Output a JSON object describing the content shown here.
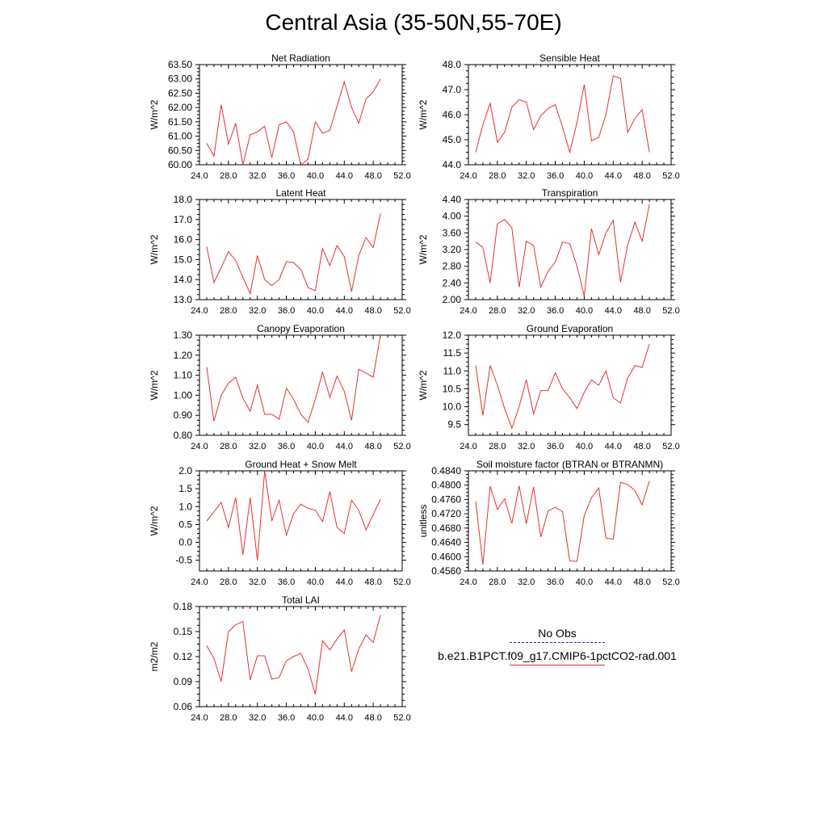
{
  "page_title": "Central Asia (35-50N,55-70E)",
  "legend": {
    "entries": [
      {
        "label": "No Obs",
        "color": "#2b2bcf",
        "style": "dashed"
      },
      {
        "label": "b.e21.B1PCT.f09_g17.CMIP6-1pctCO2-rad.001",
        "color": "#e53030",
        "style": "solid"
      }
    ]
  },
  "chart_data": [
    {
      "type": "line",
      "title": "Net Radiation",
      "ylabel": "W/m^2",
      "xlim": [
        24,
        52
      ],
      "ylim": [
        60.0,
        63.5
      ],
      "xticks": [
        "24.0",
        "28.0",
        "32.0",
        "36.0",
        "40.0",
        "44.0",
        "48.0",
        "52.0"
      ],
      "yticks": [
        "60.00",
        "60.50",
        "61.00",
        "61.50",
        "62.00",
        "62.50",
        "63.00",
        "63.50"
      ],
      "series": [
        {
          "color": "#e53030",
          "x": [
            25,
            26,
            27,
            28,
            29,
            30,
            31,
            32,
            33,
            34,
            35,
            36,
            37,
            38,
            39,
            40,
            41,
            42,
            43,
            44,
            45,
            46,
            47,
            48,
            49
          ],
          "values": [
            60.75,
            60.3,
            62.1,
            60.72,
            61.45,
            60.0,
            61.05,
            61.15,
            61.35,
            60.25,
            61.4,
            61.5,
            61.15,
            59.98,
            60.2,
            61.5,
            61.1,
            61.2,
            62.05,
            62.9,
            62.0,
            61.45,
            62.3,
            62.55,
            63.0
          ]
        }
      ]
    },
    {
      "type": "line",
      "title": "Sensible Heat",
      "ylabel": "W/m^2",
      "xlim": [
        24,
        52
      ],
      "ylim": [
        44.0,
        48.0
      ],
      "xticks": [
        "24.0",
        "28.0",
        "32.0",
        "36.0",
        "40.0",
        "44.0",
        "48.0",
        "52.0"
      ],
      "yticks": [
        "44.0",
        "45.0",
        "46.0",
        "47.0",
        "48.0"
      ],
      "series": [
        {
          "color": "#e53030",
          "x": [
            25,
            26,
            27,
            28,
            29,
            30,
            31,
            32,
            33,
            34,
            35,
            36,
            37,
            38,
            39,
            40,
            41,
            42,
            43,
            44,
            45,
            46,
            47,
            48,
            49
          ],
          "values": [
            44.5,
            45.6,
            46.45,
            44.9,
            45.3,
            46.3,
            46.6,
            46.5,
            45.4,
            45.95,
            46.25,
            46.4,
            45.5,
            44.5,
            45.7,
            47.2,
            44.95,
            45.1,
            46.0,
            47.55,
            47.45,
            45.3,
            45.85,
            46.2,
            44.5
          ]
        }
      ]
    },
    {
      "type": "line",
      "title": "Latent Heat",
      "ylabel": "W/m^2",
      "xlim": [
        24,
        52
      ],
      "ylim": [
        13.0,
        18.0
      ],
      "xticks": [
        "24.0",
        "28.0",
        "32.0",
        "36.0",
        "40.0",
        "44.0",
        "48.0",
        "52.0"
      ],
      "yticks": [
        "13.0",
        "14.0",
        "15.0",
        "16.0",
        "17.0",
        "18.0"
      ],
      "series": [
        {
          "color": "#e53030",
          "x": [
            25,
            26,
            27,
            28,
            29,
            30,
            31,
            32,
            33,
            34,
            35,
            36,
            37,
            38,
            39,
            40,
            41,
            42,
            43,
            44,
            45,
            46,
            47,
            48,
            49
          ],
          "values": [
            15.65,
            13.85,
            14.6,
            15.4,
            14.95,
            14.1,
            13.3,
            15.2,
            14.0,
            13.7,
            14.0,
            14.9,
            14.85,
            14.5,
            13.6,
            13.45,
            15.55,
            14.7,
            15.7,
            15.15,
            13.4,
            15.2,
            16.1,
            15.6,
            17.3
          ]
        }
      ]
    },
    {
      "type": "line",
      "title": "Transpiration",
      "ylabel": "W/m^2",
      "xlim": [
        24,
        52
      ],
      "ylim": [
        2.0,
        4.4
      ],
      "xticks": [
        "24.0",
        "28.0",
        "32.0",
        "36.0",
        "40.0",
        "44.0",
        "48.0",
        "52.0"
      ],
      "yticks": [
        "2.00",
        "2.40",
        "2.80",
        "3.20",
        "3.60",
        "4.00",
        "4.40"
      ],
      "series": [
        {
          "color": "#e53030",
          "x": [
            25,
            26,
            27,
            28,
            29,
            30,
            31,
            32,
            33,
            34,
            35,
            36,
            37,
            38,
            39,
            40,
            41,
            42,
            43,
            44,
            45,
            46,
            47,
            48,
            49
          ],
          "values": [
            3.38,
            3.25,
            2.4,
            3.82,
            3.92,
            3.72,
            2.3,
            3.4,
            3.3,
            2.3,
            2.68,
            2.9,
            3.38,
            3.34,
            2.8,
            2.08,
            3.7,
            3.08,
            3.6,
            3.9,
            2.42,
            3.3,
            3.86,
            3.4,
            4.28
          ]
        }
      ]
    },
    {
      "type": "line",
      "title": "Canopy Evaporation",
      "ylabel": "W/m^2",
      "xlim": [
        24,
        52
      ],
      "ylim": [
        0.8,
        1.3
      ],
      "xticks": [
        "24.0",
        "28.0",
        "32.0",
        "36.0",
        "40.0",
        "44.0",
        "48.0",
        "52.0"
      ],
      "yticks": [
        "0.80",
        "0.90",
        "1.00",
        "1.10",
        "1.20",
        "1.30"
      ],
      "series": [
        {
          "color": "#e53030",
          "x": [
            25,
            26,
            27,
            28,
            29,
            30,
            31,
            32,
            33,
            34,
            35,
            36,
            37,
            38,
            39,
            40,
            41,
            42,
            43,
            44,
            45,
            46,
            47,
            48,
            49
          ],
          "values": [
            1.14,
            0.87,
            1.0,
            1.06,
            1.09,
            0.985,
            0.92,
            1.05,
            0.905,
            0.905,
            0.88,
            1.035,
            0.98,
            0.905,
            0.865,
            0.98,
            1.115,
            0.99,
            1.095,
            1.02,
            0.875,
            1.13,
            1.11,
            1.09,
            1.3
          ]
        }
      ]
    },
    {
      "type": "line",
      "title": "Ground Evaporation",
      "ylabel": "W/m^2",
      "xlim": [
        24,
        52
      ],
      "ylim": [
        9.2,
        12.0
      ],
      "xticks": [
        "24.0",
        "28.0",
        "32.0",
        "36.0",
        "40.0",
        "44.0",
        "48.0",
        "52.0"
      ],
      "yticks": [
        "9.5",
        "10.0",
        "10.5",
        "11.0",
        "11.5",
        "12.0"
      ],
      "series": [
        {
          "color": "#e53030",
          "x": [
            25,
            26,
            27,
            28,
            29,
            30,
            31,
            32,
            33,
            34,
            35,
            36,
            37,
            38,
            39,
            40,
            41,
            42,
            43,
            44,
            45,
            46,
            47,
            48,
            49
          ],
          "values": [
            11.15,
            9.75,
            11.15,
            10.6,
            9.95,
            9.4,
            10.0,
            10.75,
            9.8,
            10.45,
            10.45,
            10.95,
            10.5,
            10.25,
            9.95,
            10.4,
            10.75,
            10.6,
            11.0,
            10.25,
            10.1,
            10.8,
            11.15,
            11.1,
            11.75
          ]
        }
      ]
    },
    {
      "type": "line",
      "title": "Ground Heat + Snow Melt",
      "ylabel": "W/m^2",
      "xlim": [
        24,
        52
      ],
      "ylim": [
        -0.8,
        2.0
      ],
      "xticks": [
        "24.0",
        "28.0",
        "32.0",
        "36.0",
        "40.0",
        "44.0",
        "48.0",
        "52.0"
      ],
      "yticks": [
        "-0.5",
        "0.0",
        "0.5",
        "1.0",
        "1.5",
        "2.0"
      ],
      "series": [
        {
          "color": "#e53030",
          "x": [
            25,
            26,
            27,
            28,
            29,
            30,
            31,
            32,
            33,
            34,
            35,
            36,
            37,
            38,
            39,
            40,
            41,
            42,
            43,
            44,
            45,
            46,
            47,
            48,
            49
          ],
          "values": [
            0.6,
            0.85,
            1.12,
            0.42,
            1.25,
            -0.35,
            1.25,
            -0.5,
            2.0,
            0.6,
            1.18,
            0.2,
            0.8,
            1.07,
            0.95,
            0.9,
            0.58,
            1.42,
            0.42,
            0.25,
            1.18,
            0.9,
            0.35,
            0.78,
            1.2
          ]
        }
      ]
    },
    {
      "type": "line",
      "title": "Soil moisture factor (BTRAN or BTRANMN)",
      "ylabel": "unitless",
      "xlim": [
        24,
        52
      ],
      "ylim": [
        0.456,
        0.484
      ],
      "xticks": [
        "24.0",
        "28.0",
        "32.0",
        "36.0",
        "40.0",
        "44.0",
        "48.0",
        "52.0"
      ],
      "yticks": [
        "0.4560",
        "0.4600",
        "0.4640",
        "0.4680",
        "0.4720",
        "0.4760",
        "0.4800",
        "0.4840"
      ],
      "series": [
        {
          "color": "#e53030",
          "x": [
            25,
            26,
            27,
            28,
            29,
            30,
            31,
            32,
            33,
            34,
            35,
            36,
            37,
            38,
            39,
            40,
            41,
            42,
            43,
            44,
            45,
            46,
            47,
            48,
            49
          ],
          "values": [
            0.4755,
            0.4578,
            0.4797,
            0.4732,
            0.4762,
            0.4693,
            0.4798,
            0.4692,
            0.4795,
            0.4655,
            0.4728,
            0.4738,
            0.4726,
            0.4588,
            0.4587,
            0.4715,
            0.4765,
            0.4792,
            0.4652,
            0.4649,
            0.4808,
            0.4802,
            0.4785,
            0.4745,
            0.4812
          ]
        }
      ]
    },
    {
      "type": "line",
      "title": "Total LAI",
      "ylabel": "m2/m2",
      "xlim": [
        24,
        52
      ],
      "ylim": [
        0.06,
        0.18
      ],
      "xticks": [
        "24.0",
        "28.0",
        "32.0",
        "36.0",
        "40.0",
        "44.0",
        "48.0",
        "52.0"
      ],
      "yticks": [
        "0.06",
        "0.09",
        "0.12",
        "0.15",
        "0.18"
      ],
      "series": [
        {
          "color": "#e53030",
          "x": [
            25,
            26,
            27,
            28,
            29,
            30,
            31,
            32,
            33,
            34,
            35,
            36,
            37,
            38,
            39,
            40,
            41,
            42,
            43,
            44,
            45,
            46,
            47,
            48,
            49
          ],
          "values": [
            0.133,
            0.118,
            0.09,
            0.15,
            0.158,
            0.162,
            0.092,
            0.121,
            0.121,
            0.093,
            0.095,
            0.115,
            0.12,
            0.124,
            0.105,
            0.075,
            0.139,
            0.128,
            0.141,
            0.152,
            0.102,
            0.129,
            0.146,
            0.137,
            0.17
          ]
        }
      ]
    }
  ]
}
